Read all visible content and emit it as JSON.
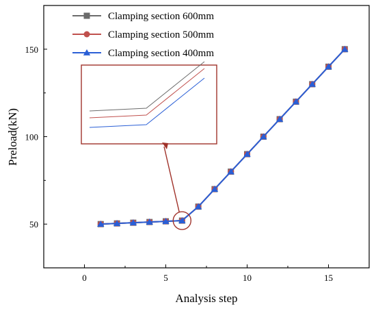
{
  "chart_data": {
    "type": "line",
    "xlabel": "Analysis step",
    "ylabel": "Preload(kN)",
    "xlim": [
      -2.5,
      17.5
    ],
    "ylim": [
      25,
      175
    ],
    "xticks": [
      0,
      5,
      10,
      15
    ],
    "yticks": [
      50,
      100,
      150
    ],
    "grid": false,
    "legend_position": "top-left",
    "series": [
      {
        "name": "Clamping section 600mm",
        "color": "#6b6b6b",
        "marker": "square",
        "x": [
          1,
          2,
          3,
          4,
          5,
          6,
          7,
          8,
          9,
          10,
          11,
          12,
          13,
          14,
          15,
          16
        ],
        "y": [
          50,
          50.4,
          50.8,
          51.2,
          51.6,
          52,
          60,
          70,
          80,
          90,
          100,
          110,
          120,
          130,
          140,
          150
        ]
      },
      {
        "name": "Clamping section 500mm",
        "color": "#c0504d",
        "marker": "circle",
        "x": [
          1,
          2,
          3,
          4,
          5,
          6,
          7,
          8,
          9,
          10,
          11,
          12,
          13,
          14,
          15,
          16
        ],
        "y": [
          50,
          50.4,
          50.8,
          51.2,
          51.6,
          52,
          60,
          70,
          80,
          90,
          100,
          110,
          120,
          130,
          140,
          150
        ]
      },
      {
        "name": "Clamping section 400mm",
        "color": "#2a5fd6",
        "marker": "triangle",
        "x": [
          1,
          2,
          3,
          4,
          5,
          6,
          7,
          8,
          9,
          10,
          11,
          12,
          13,
          14,
          15,
          16
        ],
        "y": [
          50,
          50.4,
          50.8,
          51.2,
          51.6,
          52,
          60,
          70,
          80,
          90,
          100,
          110,
          120,
          130,
          140,
          150
        ]
      }
    ],
    "inset": {
      "description_source": "zoom of region around analysis step 6",
      "focus_x": 6,
      "focus_y": 52,
      "border_color": "#a0322a"
    }
  }
}
